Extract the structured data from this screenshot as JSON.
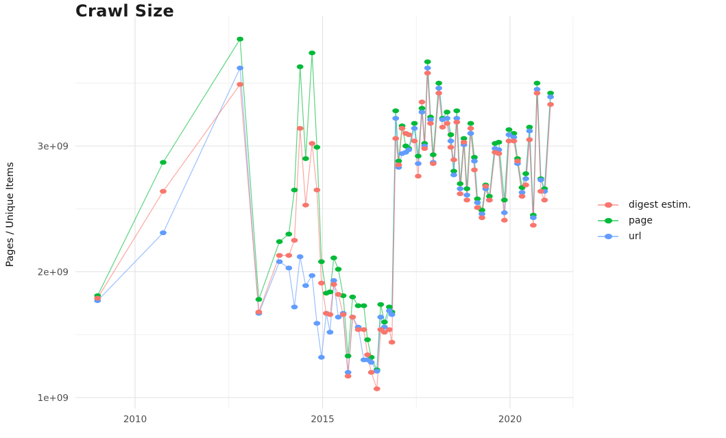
{
  "chart_data": {
    "type": "line",
    "title": "Crawl Size",
    "xlabel": "",
    "ylabel": "Pages / Unique Items",
    "y_unit": "1e+09",
    "grid": true,
    "legend_position": "right",
    "xlim": [
      2008.4,
      2021.9
    ],
    "ylim": [
      0.92,
      4.05
    ],
    "x_ticks": {
      "values": [
        2010,
        2015,
        2020
      ],
      "labels": [
        "2010",
        "2015",
        "2020"
      ]
    },
    "y_ticks": {
      "values": [
        1,
        2,
        3
      ],
      "labels": [
        "1e+09",
        "2e+09",
        "3e+09"
      ]
    },
    "x_minor_gridlines": [
      2012.5,
      2017.5
    ],
    "y_minor_gridlines": [
      1.5,
      2.5,
      3.5
    ],
    "x": [
      2009.0,
      2010.75,
      2012.8,
      2013.3,
      2013.85,
      2014.1,
      2014.25,
      2014.4,
      2014.55,
      2014.72,
      2014.85,
      2014.97,
      2015.1,
      2015.2,
      2015.3,
      2015.42,
      2015.55,
      2015.68,
      2015.8,
      2015.95,
      2016.1,
      2016.2,
      2016.3,
      2016.45,
      2016.55,
      2016.65,
      2016.78,
      2016.85,
      2016.95,
      2017.03,
      2017.12,
      2017.22,
      2017.3,
      2017.45,
      2017.55,
      2017.65,
      2017.72,
      2017.8,
      2017.88,
      2017.95,
      2018.1,
      2018.2,
      2018.32,
      2018.42,
      2018.5,
      2018.58,
      2018.67,
      2018.77,
      2018.85,
      2018.95,
      2019.05,
      2019.13,
      2019.25,
      2019.35,
      2019.45,
      2019.6,
      2019.7,
      2019.85,
      2019.97,
      2020.1,
      2020.2,
      2020.32,
      2020.42,
      2020.52,
      2020.62,
      2020.72,
      2020.82,
      2020.92,
      2021.08
    ],
    "series": [
      {
        "name": "digest estim.",
        "color": "#F8766D",
        "values": [
          1.79,
          2.64,
          3.49,
          1.68,
          2.13,
          2.13,
          2.25,
          3.14,
          2.53,
          3.02,
          2.65,
          1.91,
          1.67,
          1.66,
          1.9,
          1.82,
          1.66,
          1.17,
          1.64,
          1.54,
          1.54,
          1.34,
          1.2,
          1.07,
          1.54,
          1.52,
          1.54,
          1.44,
          3.06,
          2.85,
          3.14,
          3.1,
          3.09,
          3.04,
          2.76,
          3.35,
          2.98,
          3.58,
          3.18,
          2.86,
          3.42,
          3.15,
          3.18,
          2.99,
          2.89,
          3.19,
          2.62,
          3.03,
          2.57,
          3.14,
          2.81,
          2.51,
          2.43,
          2.68,
          2.57,
          2.95,
          2.94,
          2.41,
          3.04,
          3.04,
          2.88,
          2.6,
          2.69,
          3.05,
          2.37,
          3.42,
          2.64,
          2.57,
          3.33
        ]
      },
      {
        "name": "page",
        "color": "#00BA38",
        "values": [
          1.81,
          2.87,
          3.85,
          1.78,
          2.24,
          2.3,
          2.65,
          3.63,
          2.9,
          3.74,
          2.99,
          2.08,
          1.83,
          1.84,
          2.11,
          2.02,
          1.81,
          1.33,
          1.8,
          1.73,
          1.73,
          1.46,
          1.32,
          1.22,
          1.74,
          1.6,
          1.72,
          1.68,
          3.28,
          2.88,
          3.16,
          3.0,
          2.98,
          3.18,
          2.92,
          3.3,
          3.02,
          3.67,
          3.23,
          2.93,
          3.5,
          3.22,
          3.27,
          3.09,
          2.8,
          3.28,
          2.7,
          3.06,
          2.66,
          3.18,
          2.91,
          2.58,
          2.49,
          2.69,
          2.6,
          3.02,
          3.03,
          2.57,
          3.13,
          3.1,
          2.9,
          2.67,
          2.78,
          3.15,
          2.45,
          3.5,
          2.74,
          2.66,
          3.42
        ]
      },
      {
        "name": "url",
        "color": "#619CFF",
        "values": [
          1.77,
          2.31,
          3.62,
          1.67,
          2.08,
          2.03,
          1.72,
          2.12,
          1.89,
          1.97,
          1.59,
          1.32,
          1.67,
          1.52,
          1.93,
          1.64,
          1.67,
          1.2,
          1.64,
          1.56,
          1.3,
          1.3,
          1.28,
          1.21,
          1.64,
          1.56,
          1.69,
          1.66,
          3.22,
          2.83,
          2.94,
          2.95,
          2.97,
          3.14,
          2.86,
          3.27,
          3.0,
          3.62,
          3.21,
          2.87,
          3.46,
          3.21,
          3.22,
          3.04,
          2.77,
          3.22,
          2.66,
          3.01,
          2.61,
          3.1,
          2.88,
          2.55,
          2.46,
          2.66,
          2.57,
          2.98,
          2.97,
          2.47,
          3.09,
          3.07,
          2.86,
          2.63,
          2.74,
          3.12,
          2.43,
          3.45,
          2.73,
          2.64,
          3.39
        ]
      }
    ]
  },
  "colors": {
    "grid_major": "#e2e2e2",
    "grid_minor": "#efefef",
    "tick_label": "#4d4d4d",
    "title": "#1b1b1b"
  }
}
